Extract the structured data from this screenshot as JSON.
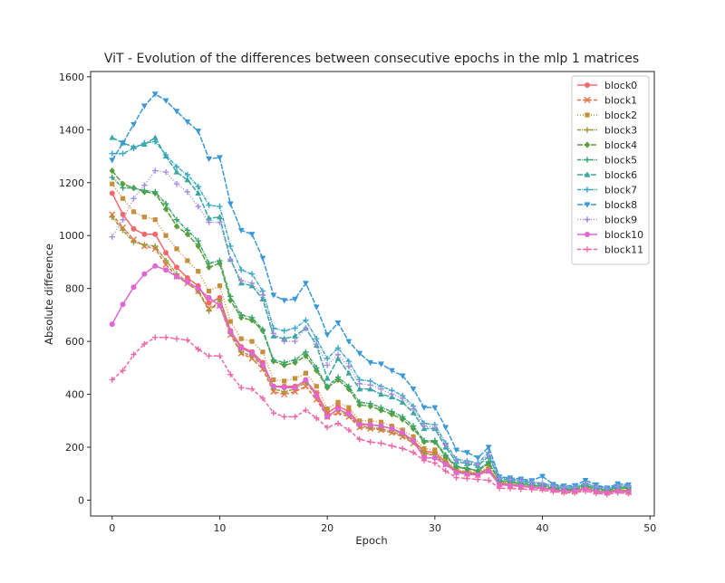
{
  "chart_data": {
    "type": "line",
    "title": "ViT - Evolution of the differences between consecutive epochs in the mlp 1 matrices",
    "xlabel": "Epoch",
    "ylabel": "Absolute difference",
    "xlim": [
      -2,
      50.4
    ],
    "ylim": [
      -60,
      1620
    ],
    "xticks": [
      0,
      10,
      20,
      30,
      40,
      50
    ],
    "yticks": [
      0,
      200,
      400,
      600,
      800,
      1000,
      1200,
      1400,
      1600
    ],
    "grid": false,
    "legend_position": "top-right",
    "x": [
      0,
      1,
      2,
      3,
      4,
      5,
      6,
      7,
      8,
      9,
      10,
      11,
      12,
      13,
      14,
      15,
      16,
      17,
      18,
      19,
      20,
      21,
      22,
      23,
      24,
      25,
      26,
      27,
      28,
      29,
      30,
      31,
      32,
      33,
      34,
      35,
      36,
      37,
      38,
      39,
      40,
      41,
      42,
      43,
      44,
      45,
      46,
      47,
      48
    ],
    "series": [
      {
        "name": "block0",
        "color": "#f2686b",
        "marker": "circle",
        "dash": "",
        "values": [
          1160,
          1080,
          1025,
          1005,
          1005,
          935,
          880,
          840,
          810,
          745,
          765,
          640,
          580,
          560,
          520,
          430,
          430,
          430,
          450,
          405,
          330,
          355,
          335,
          290,
          285,
          280,
          270,
          250,
          225,
          185,
          180,
          145,
          110,
          105,
          100,
          120,
          65,
          60,
          55,
          50,
          45,
          40,
          35,
          35,
          45,
          35,
          30,
          40,
          35
        ]
      },
      {
        "name": "block1",
        "color": "#e8713f",
        "marker": "x",
        "dash": "4,2",
        "values": [
          1080,
          1030,
          985,
          960,
          950,
          890,
          845,
          820,
          790,
          725,
          735,
          625,
          555,
          535,
          495,
          410,
          400,
          410,
          430,
          380,
          315,
          330,
          315,
          275,
          270,
          265,
          255,
          240,
          215,
          175,
          170,
          135,
          105,
          100,
          95,
          110,
          60,
          55,
          52,
          48,
          44,
          38,
          32,
          32,
          40,
          32,
          28,
          36,
          30
        ]
      },
      {
        "name": "block2",
        "color": "#c88f3a",
        "marker": "square",
        "dash": "1,2",
        "values": [
          1195,
          1140,
          1090,
          1070,
          1060,
          1000,
          950,
          905,
          865,
          790,
          810,
          675,
          610,
          600,
          560,
          455,
          450,
          460,
          480,
          430,
          345,
          370,
          350,
          300,
          300,
          295,
          280,
          265,
          240,
          195,
          190,
          155,
          115,
          110,
          105,
          125,
          68,
          63,
          58,
          52,
          48,
          42,
          38,
          37,
          48,
          38,
          32,
          42,
          38
        ]
      },
      {
        "name": "block3",
        "color": "#9c9a3a",
        "marker": "plus",
        "dash": "4,1,1,1",
        "values": [
          1070,
          1020,
          975,
          965,
          960,
          905,
          855,
          825,
          790,
          715,
          755,
          630,
          560,
          545,
          505,
          420,
          410,
          420,
          445,
          395,
          320,
          340,
          320,
          280,
          275,
          270,
          260,
          245,
          220,
          178,
          172,
          138,
          108,
          102,
          97,
          112,
          62,
          57,
          53,
          49,
          45,
          40,
          35,
          34,
          42,
          34,
          30,
          38,
          33
        ]
      },
      {
        "name": "block4",
        "color": "#5a9e3a",
        "marker": "diamond",
        "dash": "6,1.5",
        "values": [
          1245,
          1195,
          1180,
          1165,
          1160,
          1100,
          1035,
          1005,
          960,
          880,
          895,
          755,
          690,
          680,
          640,
          525,
          510,
          520,
          545,
          490,
          425,
          455,
          420,
          360,
          355,
          340,
          325,
          305,
          270,
          220,
          220,
          165,
          125,
          118,
          110,
          140,
          72,
          68,
          62,
          56,
          52,
          45,
          40,
          40,
          52,
          42,
          36,
          45,
          45
        ]
      },
      {
        "name": "block5",
        "color": "#39a56f",
        "marker": "plus",
        "dash": "4,1,1,1",
        "values": [
          1220,
          1180,
          1180,
          1170,
          1165,
          1120,
          1060,
          1020,
          980,
          895,
          905,
          770,
          700,
          690,
          645,
          530,
          520,
          530,
          560,
          500,
          430,
          465,
          430,
          370,
          365,
          350,
          335,
          315,
          280,
          225,
          225,
          170,
          128,
          120,
          113,
          145,
          74,
          70,
          64,
          58,
          54,
          47,
          42,
          42,
          55,
          45,
          38,
          48,
          48
        ]
      },
      {
        "name": "block6",
        "color": "#38a8a0",
        "marker": "triangle-up",
        "dash": "6,1.5",
        "values": [
          1370,
          1350,
          1335,
          1345,
          1370,
          1300,
          1240,
          1210,
          1160,
          1065,
          1070,
          910,
          820,
          810,
          760,
          620,
          610,
          620,
          650,
          585,
          460,
          535,
          480,
          420,
          420,
          400,
          390,
          370,
          330,
          270,
          270,
          200,
          145,
          138,
          130,
          165,
          80,
          76,
          70,
          64,
          60,
          52,
          46,
          46,
          60,
          48,
          40,
          50,
          52
        ]
      },
      {
        "name": "block7",
        "color": "#3aa8c4",
        "marker": "plus",
        "dash": "4,1,1,1",
        "values": [
          1310,
          1310,
          1330,
          1350,
          1355,
          1305,
          1260,
          1230,
          1185,
          1115,
          1110,
          960,
          870,
          855,
          790,
          650,
          640,
          650,
          680,
          610,
          535,
          575,
          525,
          455,
          450,
          430,
          415,
          395,
          355,
          290,
          285,
          215,
          155,
          148,
          140,
          180,
          84,
          80,
          75,
          69,
          64,
          56,
          50,
          50,
          64,
          52,
          44,
          55,
          55
        ]
      },
      {
        "name": "block8",
        "color": "#3a98d6",
        "marker": "triangle-down",
        "dash": "6,1.5",
        "values": [
          1285,
          1350,
          1420,
          1490,
          1535,
          1510,
          1470,
          1430,
          1395,
          1290,
          1295,
          1120,
          1020,
          1005,
          915,
          775,
          755,
          760,
          820,
          730,
          625,
          670,
          600,
          555,
          520,
          515,
          490,
          470,
          420,
          350,
          350,
          275,
          190,
          180,
          160,
          200,
          88,
          84,
          80,
          74,
          90,
          60,
          54,
          55,
          75,
          58,
          46,
          62,
          58
        ]
      },
      {
        "name": "block9",
        "color": "#a68ce0",
        "marker": "plus",
        "dash": "1,2",
        "values": [
          995,
          1060,
          1140,
          1190,
          1245,
          1240,
          1195,
          1165,
          1110,
          1050,
          1050,
          910,
          830,
          820,
          775,
          630,
          600,
          600,
          650,
          590,
          510,
          550,
          505,
          440,
          435,
          420,
          400,
          385,
          345,
          280,
          275,
          210,
          150,
          143,
          135,
          170,
          82,
          78,
          73,
          67,
          62,
          54,
          48,
          48,
          62,
          50,
          42,
          52,
          52
        ]
      },
      {
        "name": "block10",
        "color": "#e065d6",
        "marker": "circle",
        "dash": "",
        "values": [
          665,
          740,
          805,
          855,
          885,
          870,
          845,
          825,
          800,
          765,
          735,
          635,
          575,
          555,
          510,
          430,
          425,
          425,
          455,
          395,
          315,
          345,
          325,
          285,
          285,
          280,
          270,
          255,
          225,
          160,
          160,
          135,
          105,
          98,
          95,
          110,
          58,
          55,
          52,
          48,
          45,
          38,
          34,
          34,
          42,
          32,
          27,
          34,
          30
        ]
      },
      {
        "name": "block11",
        "color": "#f068a8",
        "marker": "plus",
        "dash": "4,2",
        "values": [
          455,
          490,
          550,
          590,
          615,
          615,
          610,
          605,
          570,
          545,
          545,
          475,
          425,
          420,
          385,
          330,
          315,
          315,
          340,
          310,
          275,
          290,
          265,
          230,
          220,
          215,
          205,
          195,
          180,
          150,
          140,
          110,
          85,
          82,
          78,
          75,
          45,
          44,
          42,
          40,
          38,
          32,
          28,
          28,
          34,
          26,
          22,
          28,
          25
        ]
      }
    ]
  }
}
